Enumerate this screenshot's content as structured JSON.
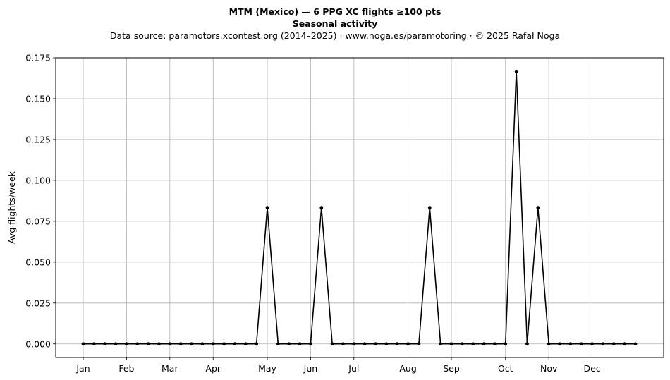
{
  "chart_data": {
    "type": "line",
    "title": "MTM (Mexico)  —  6 PPG XC flights ≥100 pts",
    "subtitle": "Seasonal activity",
    "source_note": "Data source: paramotors.xcontest.org (2014–2025)  ·  www.noga.es/paramotoring  ·  © 2025 Rafał Noga",
    "xlabel": "",
    "ylabel": "Avg flights/week",
    "ylim": [
      -0.0083,
      0.175
    ],
    "xlim": [
      0,
      53
    ],
    "yticks": [
      "0.000",
      "0.025",
      "0.050",
      "0.075",
      "0.100",
      "0.125",
      "0.150",
      "0.175"
    ],
    "ytick_values": [
      0,
      0.025,
      0.05,
      0.075,
      0.1,
      0.125,
      0.15,
      0.175
    ],
    "xticks": [
      "Jan",
      "Feb",
      "Mar",
      "Apr",
      "May",
      "Jun",
      "Jul",
      "Aug",
      "Sep",
      "Oct",
      "Nov",
      "Dec"
    ],
    "xtick_weeks": [
      3,
      7,
      11,
      15,
      20,
      24,
      28,
      33,
      37,
      42,
      46,
      50
    ],
    "grid": true,
    "series_color": "#000000",
    "x": [
      3,
      4,
      5,
      6,
      7,
      8,
      9,
      10,
      11,
      12,
      13,
      14,
      15,
      16,
      17,
      18,
      19,
      20,
      21,
      22,
      23,
      24,
      25,
      26,
      27,
      28,
      29,
      30,
      31,
      32,
      33,
      34,
      35,
      36,
      37,
      38,
      39,
      40,
      41,
      42,
      43,
      44,
      45,
      46,
      47,
      48,
      49,
      50,
      51,
      52,
      53,
      54
    ],
    "values": [
      0,
      0,
      0,
      0,
      0,
      0,
      0,
      0,
      0,
      0,
      0,
      0,
      0,
      0,
      0,
      0,
      0,
      0.0833,
      0,
      0,
      0,
      0,
      0.0833,
      0,
      0,
      0,
      0,
      0,
      0,
      0,
      0,
      0,
      0.0833,
      0,
      0,
      0,
      0,
      0,
      0,
      0,
      0.1667,
      0,
      0.0833,
      0,
      0,
      0,
      0,
      0,
      0,
      0,
      0,
      0
    ]
  }
}
